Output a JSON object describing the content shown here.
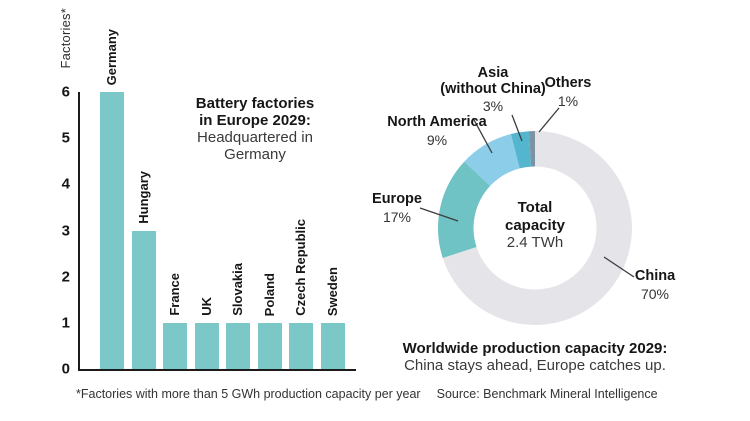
{
  "bar_chart": {
    "y_axis_label": "Factories*",
    "title_lines_bold": [
      "Battery factories",
      "in Europe 2029:"
    ],
    "title_lines_regular": [
      "Headquartered in",
      "Germany"
    ],
    "y_ticks": [
      6,
      5,
      4,
      3,
      2,
      1,
      0
    ],
    "y_max": 6,
    "bar_color": "#7CC7C8",
    "bars": [
      {
        "label": "Germany",
        "value": 6
      },
      {
        "label": "Hungary",
        "value": 3
      },
      {
        "label": "France",
        "value": 1
      },
      {
        "label": "UK",
        "value": 1
      },
      {
        "label": "Slovakia",
        "value": 1
      },
      {
        "label": "Poland",
        "value": 1
      },
      {
        "label": "Czech Republic",
        "value": 1
      },
      {
        "label": "Sweden",
        "value": 1
      }
    ]
  },
  "donut_chart": {
    "center": {
      "line1": "Total",
      "line2": "capacity",
      "value": "2.4 TWh"
    },
    "segments": [
      {
        "name": "China",
        "name2": "",
        "pct": 70,
        "pct_text": "70%",
        "color": "#E5E5E9"
      },
      {
        "name": "Europe",
        "name2": "",
        "pct": 17,
        "pct_text": "17%",
        "color": "#6FC3C4"
      },
      {
        "name": "North America",
        "name2": "",
        "pct": 9,
        "pct_text": "9%",
        "color": "#8CCEE9"
      },
      {
        "name": "Asia",
        "name2": "(without China)",
        "pct": 3,
        "pct_text": "3%",
        "color": "#54B5CE"
      },
      {
        "name": "Others",
        "name2": "",
        "pct": 1,
        "pct_text": "1%",
        "color": "#7D92A3"
      }
    ],
    "caption_bold": "Worldwide production capacity 2029:",
    "caption_regular": "China stays ahead, Europe catches up."
  },
  "footnotes": {
    "factories_note": "*Factories with more than 5 GWh production capacity per year",
    "source": "Source: Benchmark Mineral Intelligence"
  },
  "chart_data": [
    {
      "type": "bar",
      "title": "Battery factories in Europe 2029: Headquartered in Germany",
      "categories": [
        "Germany",
        "Hungary",
        "France",
        "UK",
        "Slovakia",
        "Poland",
        "Czech Republic",
        "Sweden"
      ],
      "values": [
        6,
        3,
        1,
        1,
        1,
        1,
        1,
        1
      ],
      "xlabel": "",
      "ylabel": "Factories*",
      "ylim": [
        0,
        6
      ],
      "grid": false,
      "bar_color": "#7CC7C8",
      "footnote": "*Factories with more than 5 GWh production capacity per year"
    },
    {
      "type": "pie",
      "subtype": "donut",
      "title": "Worldwide production capacity 2029: China stays ahead, Europe catches up.",
      "labels": [
        "China",
        "Europe",
        "North America",
        "Asia (without China)",
        "Others"
      ],
      "values": [
        70,
        17,
        9,
        3,
        1
      ],
      "colors": [
        "#E5E5E9",
        "#6FC3C4",
        "#8CCEE9",
        "#54B5CE",
        "#7D92A3"
      ],
      "center_text": "Total capacity 2.4 TWh",
      "source": "Source: Benchmark Mineral Intelligence",
      "legend_position": "outside-labels-with-leader-lines"
    }
  ]
}
